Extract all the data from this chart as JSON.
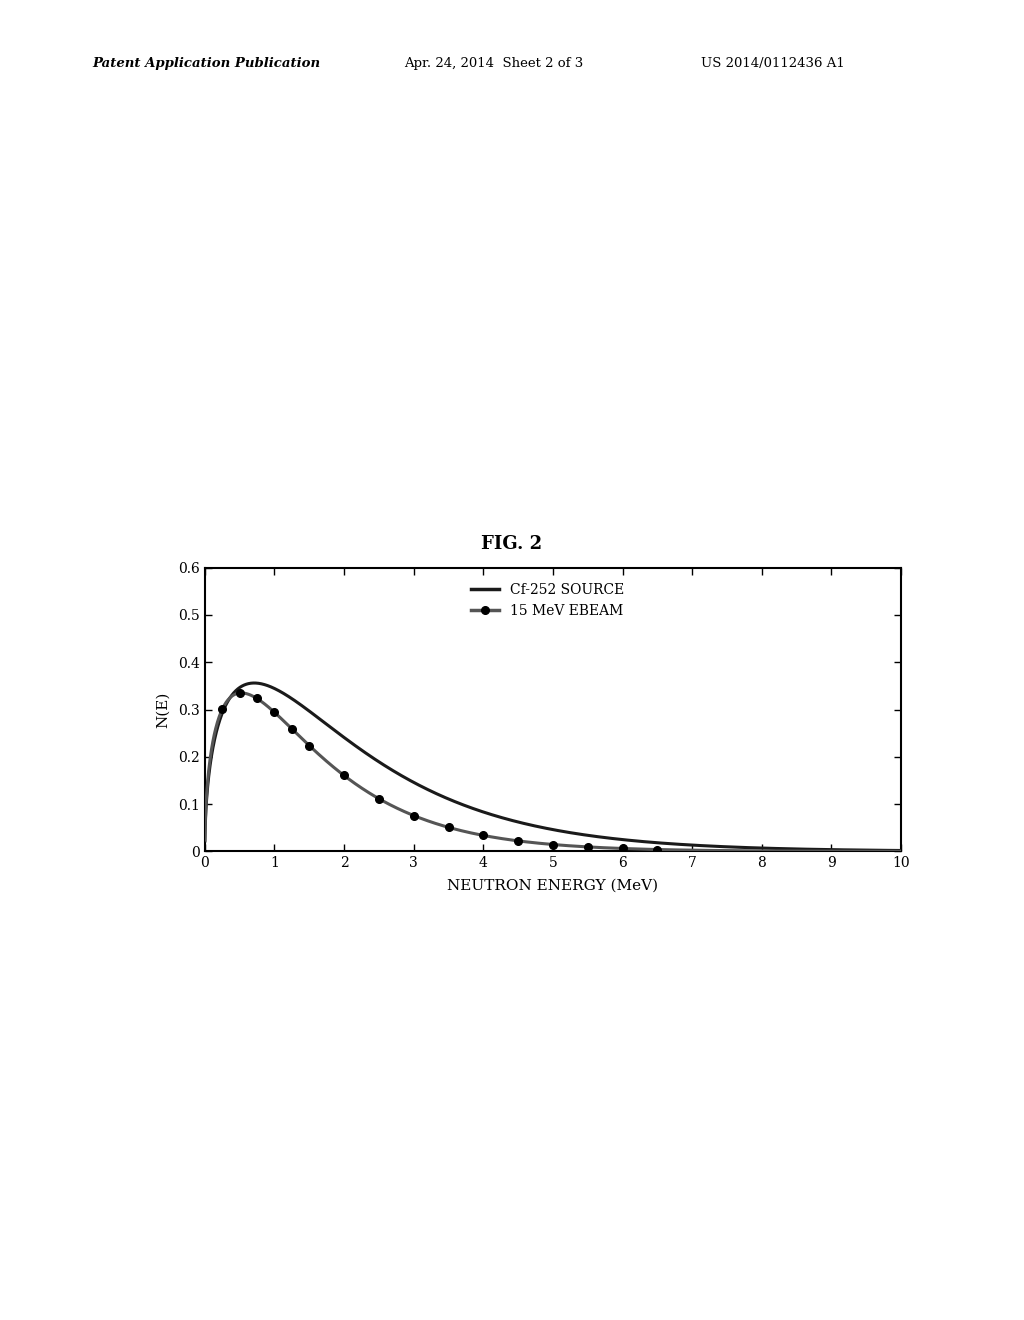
{
  "title": "FIG. 2",
  "xlabel": "NEUTRON ENERGY (MeV)",
  "ylabel": "N(E)",
  "xlim": [
    0,
    10
  ],
  "ylim": [
    0,
    0.6
  ],
  "xticks": [
    0,
    1,
    2,
    3,
    4,
    5,
    6,
    7,
    8,
    9,
    10
  ],
  "yticks": [
    0,
    0.1,
    0.2,
    0.3,
    0.4,
    0.5,
    0.6
  ],
  "header_left": "Patent Application Publication",
  "header_center": "Apr. 24, 2014  Sheet 2 of 3",
  "header_right": "US 2014/0112436 A1",
  "cf252_color": "#1a1a1a",
  "ebeam_color": "#555555",
  "background_color": "#ffffff",
  "legend_cf252": "Cf-252 SOURCE",
  "legend_ebeam": "15 MeV EBEAM",
  "ebeam_dot_x": [
    0.25,
    0.5,
    0.75,
    1.0,
    1.25,
    1.5,
    2.0,
    2.5,
    3.0,
    3.5,
    4.0,
    4.5,
    5.0,
    5.5,
    6.0,
    6.5
  ],
  "cf252_T": 1.42,
  "cf252_peak": 0.356,
  "ebeam_T": 1.05,
  "ebeam_peak": 0.335
}
